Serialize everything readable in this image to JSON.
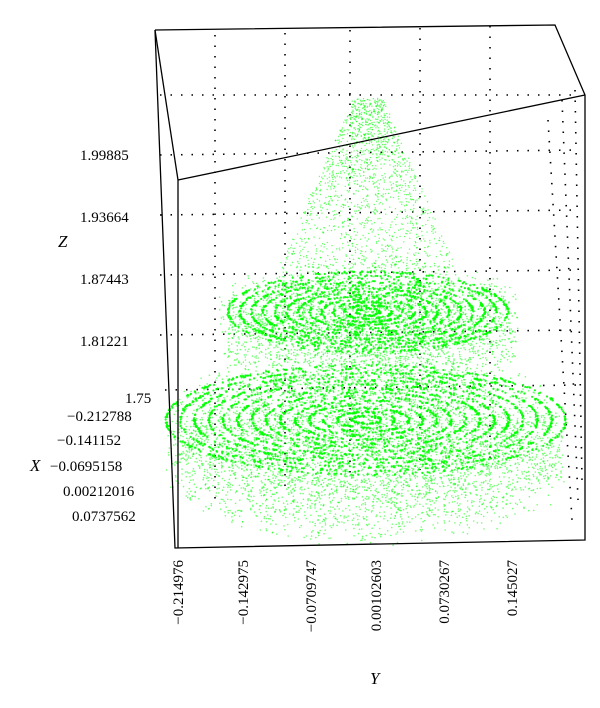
{
  "chart_data": {
    "type": "scatter",
    "projection": "3d",
    "point_color": "#00ff00",
    "axes": {
      "z": {
        "label": "Z",
        "ticks": [
          "1.99885",
          "1.93664",
          "1.87443",
          "1.81221",
          "1.75"
        ]
      },
      "x": {
        "label": "X",
        "ticks": [
          "−0.212788",
          "−0.141152",
          "−0.0695158",
          "0.00212016",
          "0.0737562"
        ]
      },
      "y": {
        "label": "Y",
        "ticks": [
          "−0.214976",
          "−0.142975",
          "−0.0709747",
          "0.00102603",
          "0.0730267",
          "0.145027"
        ]
      }
    },
    "grid": true,
    "structures": [
      {
        "name": "",
        "shape": "cone",
        "z_range": [
          1.87,
          2.02
        ]
      },
      {
        "name": "",
        "shape": "upper-disc",
        "z_level": 1.84
      },
      {
        "name": "",
        "shape": "lower-disc",
        "z_level": 1.76
      }
    ]
  }
}
